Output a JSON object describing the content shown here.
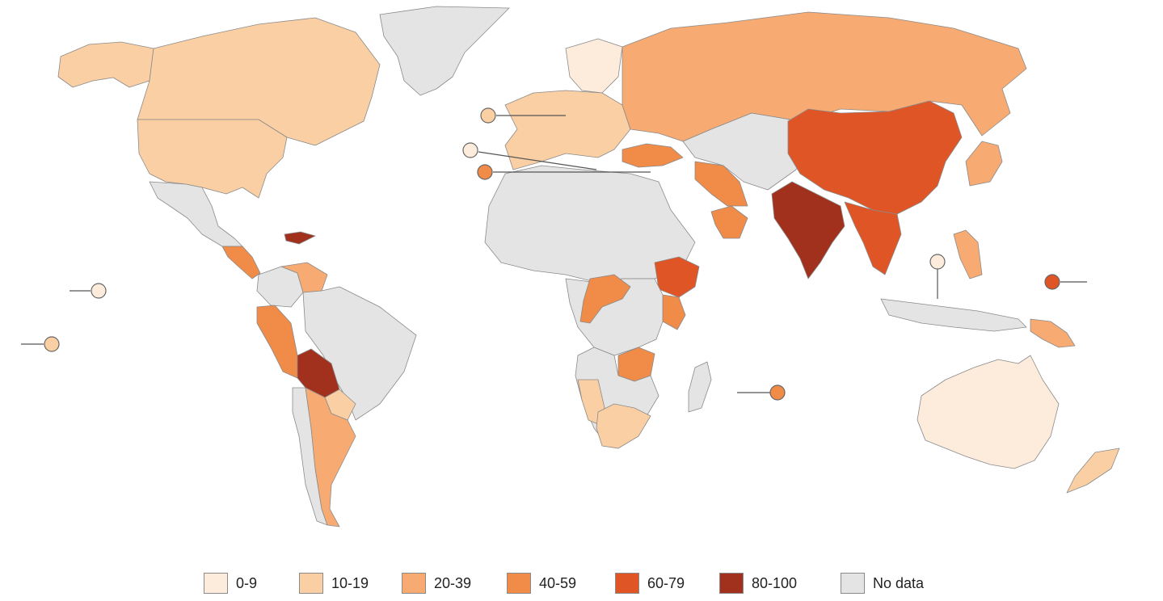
{
  "colors": {
    "c0_9": "#fdebdc",
    "c10_19": "#fbcfa4",
    "c20_39": "#f7ab72",
    "c40_59": "#f08b48",
    "c60_79": "#e05526",
    "c80_100": "#a1301d",
    "no_data": "#e4e4e4",
    "border": "#8a8a8a"
  },
  "legend": {
    "items": [
      {
        "label": "0-9",
        "color": "#fdebdc"
      },
      {
        "label": "10-19",
        "color": "#fbcfa4"
      },
      {
        "label": "20-39",
        "color": "#f7ab72"
      },
      {
        "label": "40-59",
        "color": "#f08b48"
      },
      {
        "label": "60-79",
        "color": "#e05526"
      },
      {
        "label": "80-100",
        "color": "#a1301d"
      },
      {
        "label": "No data",
        "color": "#e4e4e4"
      }
    ]
  },
  "regions": [
    {
      "name": "greenland",
      "category": "no_data"
    },
    {
      "name": "canada",
      "category": "c10_19"
    },
    {
      "name": "usa",
      "category": "c10_19"
    },
    {
      "name": "alaska",
      "category": "c10_19"
    },
    {
      "name": "mexico",
      "category": "no_data"
    },
    {
      "name": "central-america",
      "category": "c40_59"
    },
    {
      "name": "caribbean",
      "category": "c80_100"
    },
    {
      "name": "venezuela",
      "category": "c20_39"
    },
    {
      "name": "colombia",
      "category": "no_data"
    },
    {
      "name": "brazil",
      "category": "no_data"
    },
    {
      "name": "peru",
      "category": "c40_59"
    },
    {
      "name": "bolivia",
      "category": "c80_100"
    },
    {
      "name": "chile",
      "category": "no_data"
    },
    {
      "name": "argentina",
      "category": "c20_39"
    },
    {
      "name": "paraguay",
      "category": "c10_19"
    },
    {
      "name": "western-europe",
      "category": "c10_19"
    },
    {
      "name": "nordics",
      "category": "c0_9"
    },
    {
      "name": "russia",
      "category": "c20_39"
    },
    {
      "name": "turkey",
      "category": "c40_59"
    },
    {
      "name": "iran",
      "category": "c40_59"
    },
    {
      "name": "oman",
      "category": "c40_59"
    },
    {
      "name": "central-asia",
      "category": "no_data"
    },
    {
      "name": "china",
      "category": "c60_79"
    },
    {
      "name": "india",
      "category": "c80_100"
    },
    {
      "name": "mainland-southeast-asia",
      "category": "c60_79"
    },
    {
      "name": "japan",
      "category": "c20_39"
    },
    {
      "name": "philippines",
      "category": "c20_39"
    },
    {
      "name": "north-africa-and-sahel",
      "category": "no_data"
    },
    {
      "name": "ethiopia",
      "category": "c60_79"
    },
    {
      "name": "kenya",
      "category": "c40_59"
    },
    {
      "name": "congo",
      "category": "c40_59"
    },
    {
      "name": "zambia-malawi",
      "category": "c40_59"
    },
    {
      "name": "namibia",
      "category": "c10_19"
    },
    {
      "name": "south-africa",
      "category": "c10_19"
    },
    {
      "name": "madagascar",
      "category": "no_data"
    },
    {
      "name": "australia",
      "category": "c0_9"
    },
    {
      "name": "new-zealand",
      "category": "c10_19"
    },
    {
      "name": "papua-new-guinea",
      "category": "c20_39"
    }
  ],
  "callouts": [
    {
      "name": "callout-hawaii",
      "category": "c0_9"
    },
    {
      "name": "callout-pacific-south",
      "category": "c10_19"
    },
    {
      "name": "callout-europe-small-1",
      "category": "c10_19"
    },
    {
      "name": "callout-europe-small-2",
      "category": "c0_9"
    },
    {
      "name": "callout-europe-small-3",
      "category": "c40_59"
    },
    {
      "name": "callout-brunei",
      "category": "c0_9"
    },
    {
      "name": "callout-micronesia",
      "category": "c60_79"
    },
    {
      "name": "callout-mauritius",
      "category": "c40_59"
    }
  ]
}
